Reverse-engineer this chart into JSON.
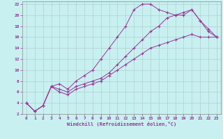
{
  "xlabel": "Windchill (Refroidissement éolien,°C)",
  "bg_color": "#c8f0f0",
  "grid_color": "#b0d0d0",
  "line_color": "#993399",
  "xlim": [
    -0.5,
    23.5
  ],
  "ylim": [
    2,
    22.5
  ],
  "xticks": [
    0,
    1,
    2,
    3,
    4,
    5,
    6,
    7,
    8,
    9,
    10,
    11,
    12,
    13,
    14,
    15,
    16,
    17,
    18,
    19,
    20,
    21,
    22,
    23
  ],
  "yticks": [
    2,
    4,
    6,
    8,
    10,
    12,
    14,
    16,
    18,
    20,
    22
  ],
  "series": [
    {
      "x": [
        0,
        1,
        2,
        3,
        4,
        5,
        6,
        7,
        8,
        9,
        10,
        11,
        12,
        13,
        14,
        15,
        16,
        17,
        18,
        19,
        20,
        21,
        22,
        23
      ],
      "y": [
        4,
        2.5,
        3.5,
        7,
        7.5,
        6.5,
        8,
        9,
        10,
        12,
        14,
        16,
        18,
        21,
        22,
        22,
        21,
        20.5,
        20,
        20,
        21,
        19,
        17,
        16
      ]
    },
    {
      "x": [
        0,
        1,
        2,
        3,
        4,
        5,
        6,
        7,
        8,
        9,
        10,
        11,
        12,
        13,
        14,
        15,
        16,
        17,
        18,
        19,
        20,
        21,
        22,
        23
      ],
      "y": [
        4,
        2.5,
        3.5,
        7,
        6.5,
        6,
        7,
        7.5,
        8,
        8.5,
        9.5,
        11,
        12.5,
        14,
        15.5,
        17,
        18,
        19.5,
        20,
        20.5,
        21,
        19,
        17.5,
        16
      ]
    },
    {
      "x": [
        0,
        1,
        2,
        3,
        4,
        5,
        6,
        7,
        8,
        9,
        10,
        11,
        12,
        13,
        14,
        15,
        16,
        17,
        18,
        19,
        20,
        21,
        22,
        23
      ],
      "y": [
        4,
        2.5,
        3.5,
        7,
        6,
        5.5,
        6.5,
        7,
        7.5,
        8,
        9,
        10,
        11,
        12,
        13,
        14,
        14.5,
        15,
        15.5,
        16,
        16.5,
        16,
        16,
        16
      ]
    }
  ]
}
